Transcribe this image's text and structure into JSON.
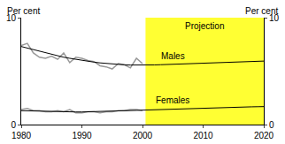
{
  "chart_data": {
    "type": "line",
    "y_label": "Per cent",
    "y2_label": "Per cent",
    "x": [
      1980,
      1981,
      1982,
      1983,
      1984,
      1985,
      1986,
      1987,
      1988,
      1989,
      1990,
      1991,
      1992,
      1993,
      1994,
      1995,
      1996,
      1997,
      1998,
      1999,
      2000,
      2001,
      2002,
      2003,
      2004,
      2005,
      2006,
      2007,
      2008,
      2009,
      2010,
      2011,
      2012,
      2013,
      2014,
      2015,
      2016,
      2017,
      2018,
      2019,
      2020
    ],
    "series": [
      {
        "name": "Males",
        "color": "#000000",
        "actual_color": "#999999",
        "values": [
          7.3,
          7.15,
          7.0,
          6.85,
          6.7,
          6.55,
          6.4,
          6.3,
          6.2,
          6.1,
          6.0,
          5.92,
          5.84,
          5.77,
          5.71,
          5.66,
          5.62,
          5.59,
          5.57,
          5.56,
          5.56,
          5.57,
          5.58,
          5.6,
          5.62,
          5.64,
          5.66,
          5.68,
          5.7,
          5.72,
          5.74,
          5.76,
          5.78,
          5.8,
          5.82,
          5.84,
          5.86,
          5.88,
          5.9,
          5.92,
          5.94
        ],
        "actual": [
          7.4,
          7.6,
          6.7,
          6.3,
          6.2,
          6.4,
          6.1,
          6.7,
          5.8,
          6.3,
          6.2,
          6.0,
          5.9,
          5.5,
          5.4,
          5.2,
          5.7,
          5.6,
          5.3,
          6.2,
          5.7,
          null,
          null,
          null,
          null,
          null,
          null,
          null,
          null,
          null,
          null,
          null,
          null,
          null,
          null,
          null,
          null,
          null,
          null,
          null,
          null
        ]
      },
      {
        "name": "Females",
        "color": "#000000",
        "actual_color": "#999999",
        "values": [
          1.3,
          1.28,
          1.26,
          1.24,
          1.22,
          1.2,
          1.19,
          1.18,
          1.18,
          1.18,
          1.18,
          1.19,
          1.2,
          1.21,
          1.23,
          1.25,
          1.27,
          1.29,
          1.31,
          1.33,
          1.35,
          1.37,
          1.39,
          1.41,
          1.43,
          1.45,
          1.47,
          1.49,
          1.51,
          1.53,
          1.55,
          1.57,
          1.59,
          1.61,
          1.62,
          1.63,
          1.64,
          1.65,
          1.66,
          1.67,
          1.68
        ],
        "actual": [
          1.4,
          1.5,
          1.3,
          1.3,
          1.2,
          1.2,
          1.3,
          1.2,
          1.4,
          1.1,
          1.1,
          1.2,
          1.2,
          1.1,
          1.2,
          1.2,
          1.3,
          1.3,
          1.4,
          1.4,
          1.3,
          null,
          null,
          null,
          null,
          null,
          null,
          null,
          null,
          null,
          null,
          null,
          null,
          null,
          null,
          null,
          null,
          null,
          null,
          null,
          null
        ]
      }
    ],
    "shaded_regions": [
      {
        "label": "Projection",
        "x0": 2000.5,
        "x1": 2020,
        "color": "#ffff33"
      }
    ],
    "xlim": [
      1980,
      2020
    ],
    "xticks": [
      1980,
      1990,
      2000,
      2010,
      2020
    ],
    "ylim": [
      0,
      10
    ],
    "yticks": [
      0,
      10
    ],
    "y2lim": [
      0,
      10
    ],
    "y2ticks": [
      0,
      10
    ],
    "grid": false
  }
}
